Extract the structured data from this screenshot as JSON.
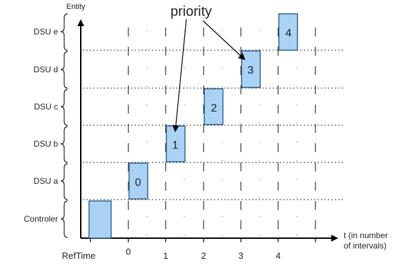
{
  "y_axis_title": "Entity",
  "annotation": "priority",
  "x_axis_title_line1": "t (in number",
  "x_axis_title_line2": "of intervals)",
  "ref_label": "RefTime",
  "entities": [
    "DSU e",
    "DSU d",
    "DSU c",
    "DSU b",
    "DSU a",
    "Controler"
  ],
  "ticks": [
    "0",
    "1",
    "2",
    "3",
    "4"
  ],
  "slots": [
    {
      "entity": "Controler",
      "interval": "ref",
      "label": ""
    },
    {
      "entity": "DSU a",
      "interval": 0,
      "label": "0"
    },
    {
      "entity": "DSU b",
      "interval": 1,
      "label": "1"
    },
    {
      "entity": "DSU c",
      "interval": 2,
      "label": "2"
    },
    {
      "entity": "DSU d",
      "interval": 3,
      "label": "3"
    },
    {
      "entity": "DSU e",
      "interval": 4,
      "label": "4"
    }
  ],
  "colors": {
    "slot_fill": "#a9d2f5",
    "slot_stroke": "#1f4f80",
    "axis": "#000000",
    "grid": "#333333"
  }
}
